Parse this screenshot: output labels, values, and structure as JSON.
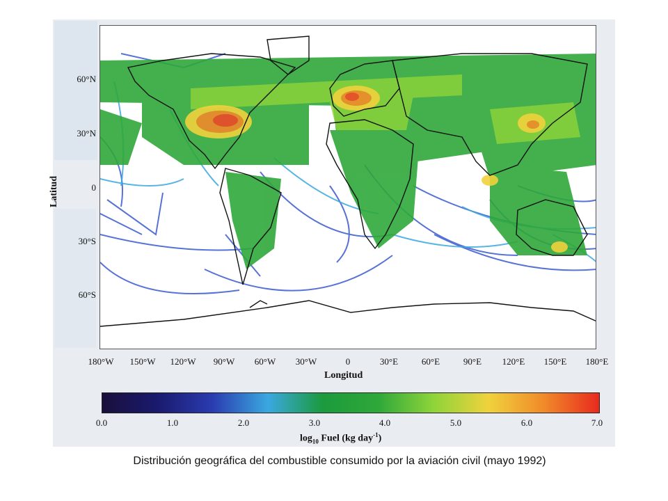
{
  "figure": {
    "y_axis_label": "Latitud",
    "x_axis_label": "Longitud",
    "colorbar_label": "log10 Fuel (kg day-1)",
    "caption": "Distribución geográfica del combustible consumido por la aviación civil (mayo 1992)"
  },
  "y_ticks": [
    "60°N",
    "30°N",
    "0",
    "30°S",
    "60°S"
  ],
  "x_ticks": [
    "180°W",
    "150°W",
    "120°W",
    "90°W",
    "60°W",
    "30°W",
    "0",
    "30°E",
    "60°E",
    "90°E",
    "120°E",
    "150°E",
    "180°E"
  ],
  "colorbar_ticks": [
    "0.0",
    "1.0",
    "2.0",
    "3.0",
    "4.0",
    "5.0",
    "6.0",
    "7.0"
  ],
  "colorbar_label_parts": {
    "prefix": "log",
    "sub": "10",
    "mid": " Fuel (kg day",
    "sup": "-1",
    "suffix": ")"
  },
  "colors": {
    "scale": [
      "#1a0f3c",
      "#1a1a6e",
      "#2a3cb0",
      "#3aa8e0",
      "#1c9a3c",
      "#2fa83a",
      "#8ed43a",
      "#f0d23c",
      "#f08a2a",
      "#e82a1e"
    ],
    "high_traffic": "#ef4a28",
    "medium_traffic": "#7cc83c",
    "low_traffic": "#3a5ad0",
    "coastline": "#111111"
  },
  "regions": [
    "North America",
    "South America",
    "Europe",
    "Africa",
    "Asia",
    "Australia",
    "Antarctica"
  ]
}
